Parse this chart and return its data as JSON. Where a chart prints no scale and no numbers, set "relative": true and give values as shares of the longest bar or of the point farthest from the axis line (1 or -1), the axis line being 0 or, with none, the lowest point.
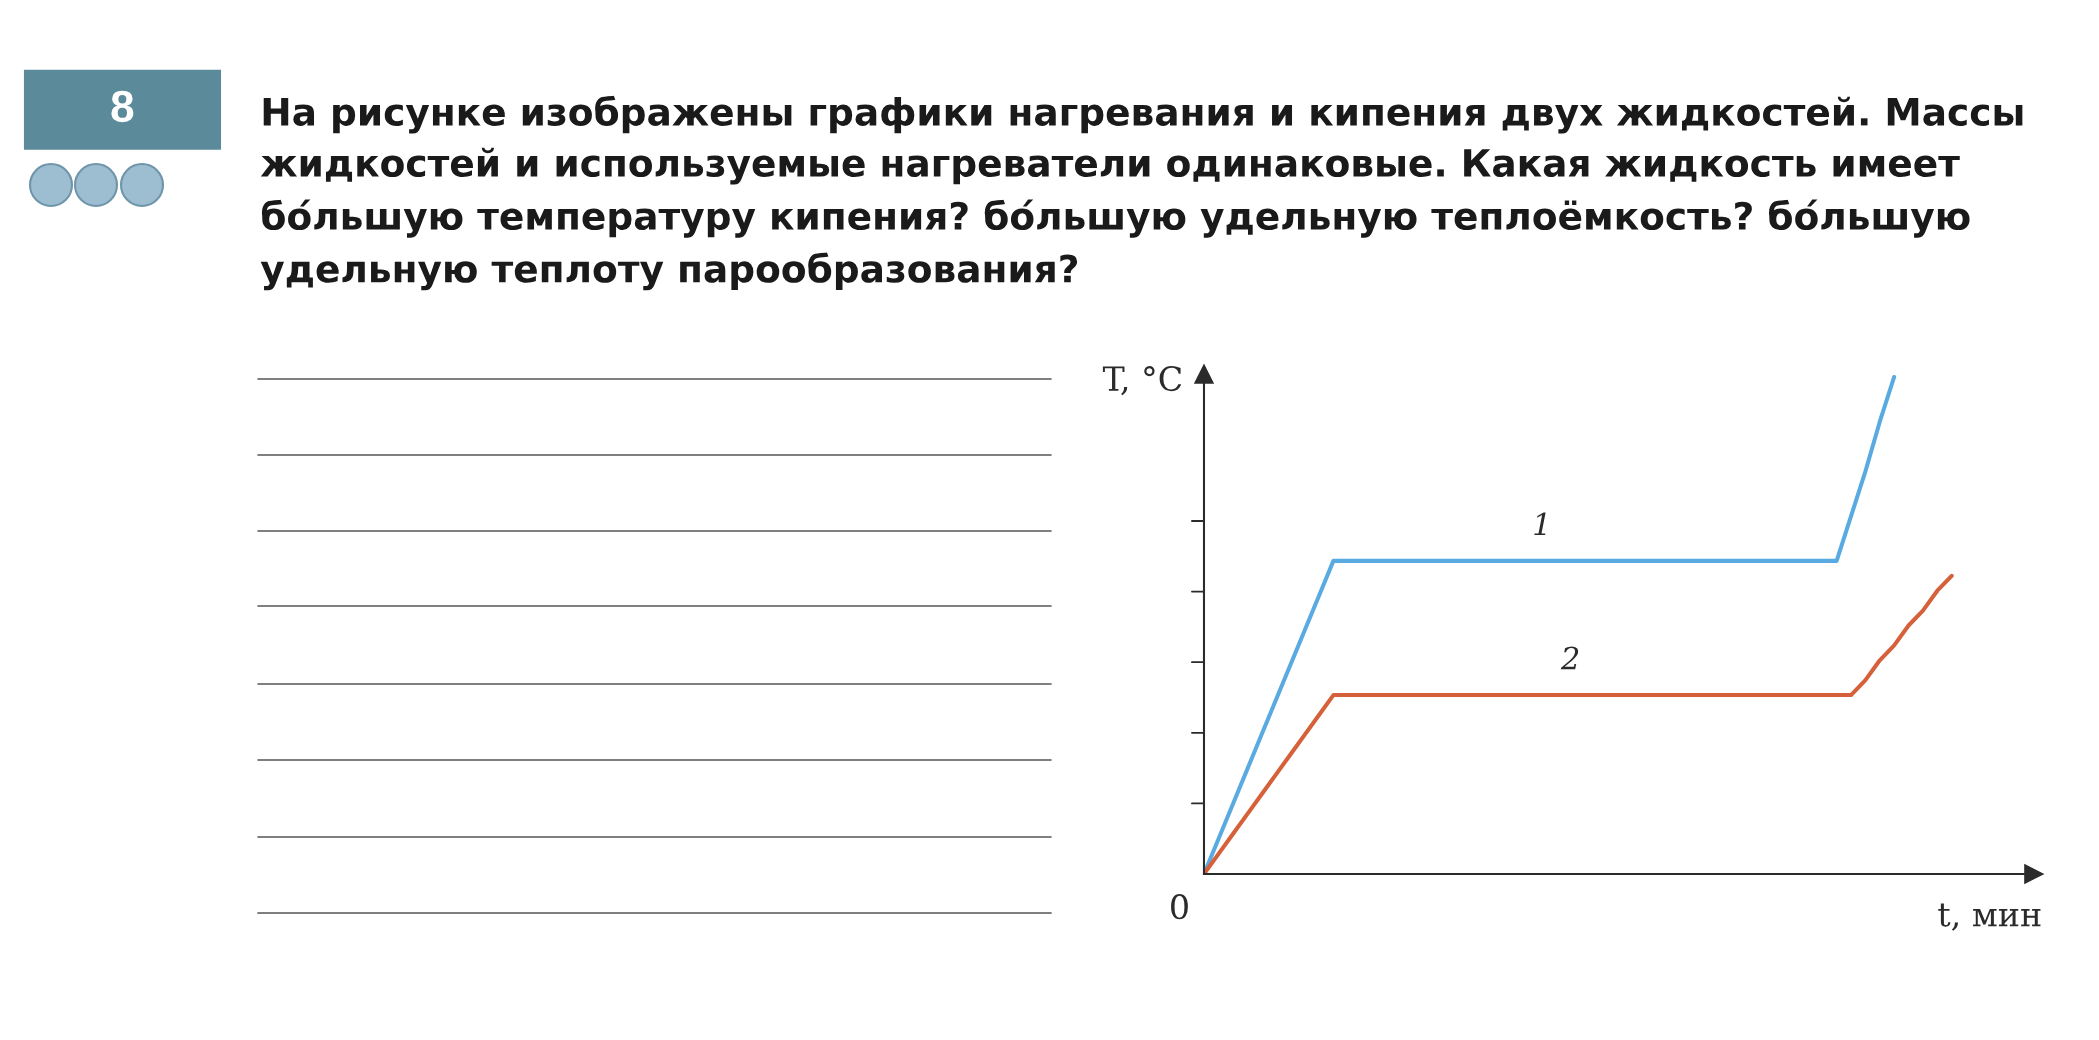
{
  "chart_data": {
    "type": "line",
    "title": "На рисунке изображены графики нагревания и кипения двух жидкостей. Массы жидкостей и используемые нагреватели одинаковые. Какая жидкость имеет бо́льшую температуру кипения? бо́льшую удельную теплоёмкость? бо́льшую удельную теплоту парообразования?",
    "xlabel": "t, мин",
    "ylabel": "T, °C",
    "relative": true,
    "categories": [
      null,
      null,
      null,
      null,
      null,
      null,
      null,
      null,
      null,
      null,
      null,
      null,
      null,
      null,
      null,
      null,
      null,
      null,
      null,
      null,
      null,
      null,
      null,
      null,
      null,
      null,
      null,
      null,
      null,
      null,
      null,
      null,
      null,
      null,
      null,
      null,
      null,
      null,
      null,
      null,
      null,
      null,
      null,
      null,
      null,
      null,
      null,
      null,
      null,
      null,
      null,
      null,
      null
    ],
    "series": [
      {
        "name": "1",
        "color": "#5aaae2",
        "values": [
          0,
          0.07,
          0.14,
          0.21,
          0.28,
          0.35,
          0.42,
          0.49,
          0.56,
          0.63,
          0.63,
          0.63,
          0.63,
          0.63,
          0.63,
          0.63,
          0.63,
          0.63,
          0.63,
          0.63,
          0.63,
          0.63,
          0.63,
          0.63,
          0.63,
          0.63,
          0.63,
          0.63,
          0.63,
          0.63,
          0.63,
          0.63,
          0.63,
          0.63,
          0.63,
          0.63,
          0.63,
          0.63,
          0.63,
          0.63,
          0.63,
          0.63,
          0.63,
          0.63,
          0.63,
          0.72,
          0.81,
          0.91,
          1,
          null,
          null,
          null,
          null
        ]
      },
      {
        "name": "2",
        "color": "#d6603a",
        "values": [
          0,
          0.04,
          0.08,
          0.12,
          0.16,
          0.2,
          0.24,
          0.28,
          0.32,
          0.36,
          0.36,
          0.36,
          0.36,
          0.36,
          0.36,
          0.36,
          0.36,
          0.36,
          0.36,
          0.36,
          0.36,
          0.36,
          0.36,
          0.36,
          0.36,
          0.36,
          0.36,
          0.36,
          0.36,
          0.36,
          0.36,
          0.36,
          0.36,
          0.36,
          0.36,
          0.36,
          0.36,
          0.36,
          0.36,
          0.36,
          0.36,
          0.36,
          0.36,
          0.36,
          0.36,
          0.36,
          0.39,
          0.43,
          0.46,
          0.5,
          0.53,
          0.57,
          0.6
        ]
      }
    ],
    "legend": false,
    "marker": "none",
    "line_style": "solid",
    "annotations": [
      "8",
      "0"
    ]
  }
}
